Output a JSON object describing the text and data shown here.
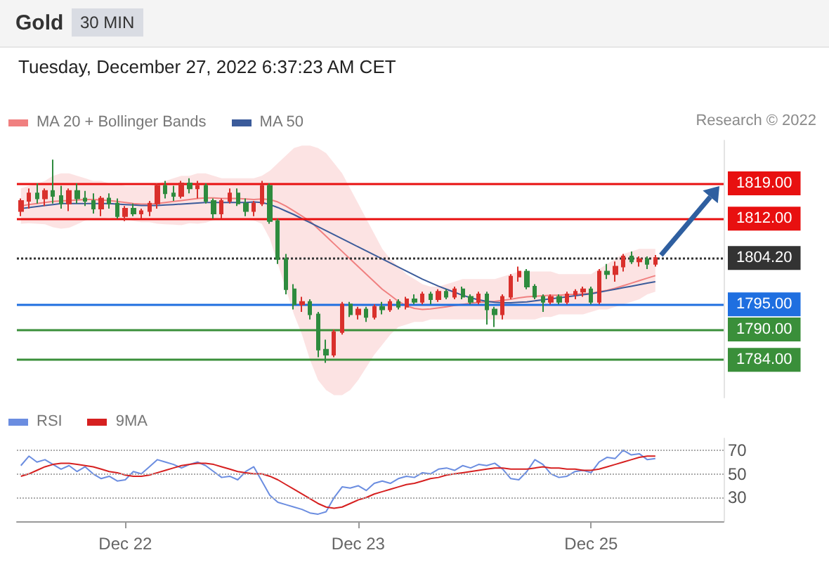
{
  "chart_data": [
    {
      "type": "candlestick",
      "title": "Gold",
      "subtitle": "30 MIN",
      "annotations": [
        "Tuesday, December 27, 2022 6:37:23 AM CET",
        "Research © 2022"
      ],
      "categories": [
        null,
        null,
        null,
        null,
        null,
        null,
        null,
        null,
        null,
        null,
        null,
        null,
        null,
        null,
        null,
        null,
        null,
        null,
        null,
        null,
        null,
        null,
        null,
        null,
        null,
        null,
        null,
        null,
        null,
        null,
        null,
        null,
        null,
        null,
        null,
        null,
        null,
        null,
        null,
        null,
        null,
        null,
        null,
        null,
        null,
        null,
        null,
        null,
        null,
        null,
        null,
        null,
        null,
        null,
        null,
        null,
        null,
        null,
        null,
        null,
        null,
        null,
        null,
        null,
        null,
        null,
        null,
        null,
        null,
        null,
        null,
        null,
        null,
        null,
        null,
        null,
        null,
        null,
        null,
        null
      ],
      "ohlc": [
        [
          1813.5,
          1816,
          1812.5,
          1815.5
        ],
        [
          1815.5,
          1818,
          1814,
          1817
        ],
        [
          1817,
          1819,
          1815,
          1816
        ],
        [
          1816,
          1818,
          1814.5,
          1817.5
        ],
        [
          1817.5,
          1823.7,
          1815,
          1816.5
        ],
        [
          1816.5,
          1818.5,
          1814,
          1815
        ],
        [
          1815,
          1818,
          1813.5,
          1817.5
        ],
        [
          1817.5,
          1819,
          1815,
          1816
        ],
        [
          1816,
          1817.5,
          1814.5,
          1815.5
        ],
        [
          1815.5,
          1817,
          1813,
          1814
        ],
        [
          1814,
          1816.5,
          1812.5,
          1816
        ],
        [
          1816,
          1817,
          1814,
          1815
        ],
        [
          1815,
          1816,
          1812,
          1812.5
        ],
        [
          1812.5,
          1814.5,
          1811.5,
          1814
        ],
        [
          1814,
          1815,
          1812.5,
          1813
        ],
        [
          1813,
          1814,
          1812,
          1813.5
        ],
        [
          1813.5,
          1815.5,
          1812.5,
          1815
        ],
        [
          1815,
          1819,
          1814,
          1818.5
        ],
        [
          1818.5,
          1819.5,
          1816,
          1817
        ],
        [
          1817,
          1818.5,
          1815.5,
          1816.5
        ],
        [
          1816.5,
          1819.5,
          1816,
          1819
        ],
        [
          1819,
          1820,
          1817,
          1818
        ],
        [
          1818,
          1819.5,
          1816,
          1818.5
        ],
        [
          1818.5,
          1819,
          1815,
          1815.5
        ],
        [
          1815.5,
          1816,
          1812,
          1813
        ],
        [
          1813,
          1816,
          1812,
          1815.5
        ],
        [
          1815.5,
          1818,
          1815,
          1817
        ],
        [
          1817,
          1818,
          1814.5,
          1815
        ],
        [
          1815,
          1816,
          1812.5,
          1813.5
        ],
        [
          1813.5,
          1815.5,
          1812.5,
          1815
        ],
        [
          1815,
          1819.5,
          1814.5,
          1818.5
        ],
        [
          1818.5,
          1819,
          1811,
          1811.5
        ],
        [
          1811.5,
          1812,
          1803,
          1804
        ],
        [
          1804,
          1805,
          1797,
          1798
        ],
        [
          1798,
          1799,
          1794,
          1795
        ],
        [
          1795,
          1796.5,
          1793.5,
          1795.5
        ],
        [
          1795.5,
          1796,
          1792,
          1793
        ],
        [
          1793,
          1793.5,
          1784.5,
          1786
        ],
        [
          1786,
          1788,
          1783.4,
          1785
        ],
        [
          1785,
          1790,
          1784.5,
          1789.5
        ],
        [
          1789.5,
          1795.5,
          1789,
          1795
        ],
        [
          1795,
          1795.5,
          1792.5,
          1793
        ],
        [
          1793,
          1794.5,
          1792,
          1794
        ],
        [
          1794,
          1794.5,
          1791.5,
          1792.5
        ],
        [
          1792.5,
          1795,
          1792,
          1794.5
        ],
        [
          1794.5,
          1795.5,
          1793,
          1794
        ],
        [
          1794,
          1796,
          1793.5,
          1795.5
        ],
        [
          1795.5,
          1796,
          1794,
          1794.5
        ],
        [
          1794.5,
          1796.5,
          1794,
          1796
        ],
        [
          1796,
          1797,
          1795,
          1795.5
        ],
        [
          1795.5,
          1797.5,
          1795,
          1797
        ],
        [
          1797,
          1797.5,
          1795,
          1796
        ],
        [
          1796,
          1798,
          1795.5,
          1797.5
        ],
        [
          1797.5,
          1798,
          1796,
          1796.5
        ],
        [
          1796.5,
          1798.5,
          1796,
          1798
        ],
        [
          1798,
          1798.5,
          1796,
          1796.5
        ],
        [
          1796.5,
          1797,
          1795,
          1795.5
        ],
        [
          1795.5,
          1797.5,
          1795,
          1797
        ],
        [
          1797,
          1797.5,
          1791,
          1794
        ],
        [
          1794,
          1794.5,
          1790.5,
          1793
        ],
        [
          1793,
          1797,
          1792,
          1796.5
        ],
        [
          1796.5,
          1801,
          1796,
          1800.5
        ],
        [
          1800.5,
          1802.5,
          1799.5,
          1801.5
        ],
        [
          1801.5,
          1802,
          1798,
          1798.5
        ],
        [
          1798.5,
          1799,
          1796,
          1796.5
        ],
        [
          1796.5,
          1797,
          1793.5,
          1795.5
        ],
        [
          1795.5,
          1797,
          1795,
          1796.5
        ],
        [
          1796.5,
          1797,
          1795,
          1795.5
        ],
        [
          1795.5,
          1797.5,
          1795,
          1797
        ],
        [
          1797,
          1798,
          1796,
          1797.5
        ],
        [
          1797.5,
          1798.5,
          1796.5,
          1798
        ],
        [
          1798,
          1798.5,
          1795,
          1795.5
        ],
        [
          1795.5,
          1802,
          1795,
          1801.5
        ],
        [
          1801.5,
          1803,
          1800,
          1801
        ],
        [
          1801,
          1803.5,
          1799.5,
          1802.5
        ],
        [
          1802.5,
          1805,
          1801.5,
          1804.5
        ],
        [
          1804.5,
          1805.5,
          1803,
          1803.5
        ],
        [
          1803.5,
          1804.5,
          1802.5,
          1804
        ],
        [
          1804,
          1804.5,
          1802,
          1803
        ],
        [
          1803,
          1804.8,
          1802.5,
          1804.2
        ]
      ],
      "colors": [
        "#d9302c",
        "#d9302c",
        "#2e8b3e",
        "#d9302c",
        "#2e8b3e",
        "#2e8b3e",
        "#d9302c",
        "#2e8b3e",
        "#2e8b3e",
        "#2e8b3e",
        "#d9302c",
        "#2e8b3e",
        "#2e8b3e",
        "#d9302c",
        "#2e8b3e",
        "#d9302c",
        "#d9302c",
        "#d9302c",
        "#2e8b3e",
        "#2e8b3e",
        "#d9302c",
        "#2e8b3e",
        "#d9302c",
        "#2e8b3e",
        "#2e8b3e",
        "#d9302c",
        "#d9302c",
        "#2e8b3e",
        "#2e8b3e",
        "#d9302c",
        "#d9302c",
        "#2e8b3e",
        "#2e8b3e",
        "#2e8b3e",
        "#2e8b3e",
        "#d9302c",
        "#2e8b3e",
        "#2e8b3e",
        "#2e8b3e",
        "#d9302c",
        "#d9302c",
        "#2e8b3e",
        "#d9302c",
        "#2e8b3e",
        "#d9302c",
        "#2e8b3e",
        "#d9302c",
        "#2e8b3e",
        "#d9302c",
        "#2e8b3e",
        "#d9302c",
        "#2e8b3e",
        "#d9302c",
        "#2e8b3e",
        "#d9302c",
        "#2e8b3e",
        "#2e8b3e",
        "#d9302c",
        "#2e8b3e",
        "#2e8b3e",
        "#d9302c",
        "#d9302c",
        "#d9302c",
        "#2e8b3e",
        "#2e8b3e",
        "#2e8b3e",
        "#d9302c",
        "#2e8b3e",
        "#d9302c",
        "#d9302c",
        "#d9302c",
        "#2e8b3e",
        "#d9302c",
        "#2e8b3e",
        "#d9302c",
        "#d9302c",
        "#2e8b3e",
        "#d9302c",
        "#2e8b3e",
        "#d9302c"
      ],
      "ylim": [
        1776.5,
        1827.5
      ],
      "yticks": [
        {
          "value": 1784,
          "label": "1784.00"
        },
        {
          "value": 1790,
          "label": "1790.00"
        },
        {
          "value": 1795,
          "label": "1795.00"
        },
        {
          "value": 1804.2,
          "label": "1804.20"
        },
        {
          "value": 1812,
          "label": "1812.00"
        },
        {
          "value": 1819,
          "label": "1819.00"
        }
      ],
      "tick_labels": "y",
      "legend": "top left",
      "marker": "none",
      "series": [
        {
          "type": "line",
          "name": "MA 20 + Bollinger Bands",
          "color": "#f08080",
          "values": [
            1814.5,
            1814.8,
            1815,
            1815.2,
            1815.4,
            1815.5,
            1815.6,
            1815.7,
            1815.8,
            1815.8,
            1815.7,
            1815.6,
            1815.4,
            1815.2,
            1815,
            1814.9,
            1814.9,
            1815,
            1815.2,
            1815.4,
            1815.6,
            1815.8,
            1816,
            1816.1,
            1816.1,
            1816,
            1816,
            1816,
            1815.9,
            1815.8,
            1815.9,
            1815.8,
            1815.3,
            1814.5,
            1813.5,
            1812.5,
            1811.5,
            1810,
            1808.5,
            1807,
            1805.5,
            1804,
            1802.5,
            1801,
            1799.5,
            1798,
            1796.8,
            1795.6,
            1794.7,
            1794.2,
            1794,
            1794.1,
            1794.3,
            1794.5,
            1794.8,
            1795,
            1795.2,
            1795.4,
            1795.5,
            1795.6,
            1795.8,
            1796,
            1796.3,
            1796.5,
            1796.6,
            1796.7,
            1796.8,
            1796.8,
            1796.9,
            1797,
            1797.1,
            1797.2,
            1797.5,
            1797.8,
            1798.2,
            1798.7,
            1799.2,
            1799.7,
            1800.2,
            1800.7
          ],
          "upper": [
            1818,
            1818.5,
            1819,
            1819.5,
            1820.5,
            1821,
            1821,
            1820.5,
            1820,
            1819.5,
            1819.5,
            1819,
            1819,
            1818.5,
            1818.5,
            1818.5,
            1818.5,
            1819,
            1819.5,
            1820,
            1820.5,
            1820.5,
            1821,
            1821,
            1820.5,
            1820,
            1820,
            1820,
            1820,
            1820,
            1820.5,
            1821.5,
            1823,
            1824.5,
            1826,
            1826.5,
            1826.5,
            1826,
            1825,
            1823,
            1821,
            1818,
            1815,
            1812,
            1809,
            1806,
            1804,
            1802.5,
            1801,
            1800,
            1799,
            1798.5,
            1798.5,
            1799,
            1799.5,
            1800,
            1800,
            1800,
            1800,
            1800,
            1800.5,
            1801,
            1801.5,
            1801.5,
            1801.5,
            1801.5,
            1801.5,
            1801,
            1801,
            1801,
            1801,
            1801,
            1802,
            1803,
            1804,
            1805,
            1805.5,
            1806,
            1806,
            1806
          ],
          "lower": [
            1811,
            1811.1,
            1811,
            1810.9,
            1810.3,
            1810,
            1810.2,
            1810.9,
            1811.6,
            1812.1,
            1811.9,
            1812.2,
            1811.8,
            1811.9,
            1811.5,
            1811.3,
            1811.3,
            1811,
            1810.9,
            1810.8,
            1810.7,
            1811.1,
            1811,
            1811.2,
            1811.7,
            1812,
            1812,
            1812,
            1811.8,
            1811.6,
            1811,
            1808,
            1803,
            1798,
            1793,
            1789,
            1784,
            1780,
            1778,
            1777,
            1777,
            1778,
            1780,
            1782.5,
            1785,
            1787,
            1789,
            1790.5,
            1791,
            1791.5,
            1791.5,
            1792,
            1792,
            1792,
            1792,
            1792,
            1792,
            1792,
            1792,
            1792,
            1792,
            1792,
            1792,
            1792,
            1792,
            1792.5,
            1792.5,
            1793,
            1793,
            1793,
            1793,
            1793.5,
            1794,
            1794,
            1794.5,
            1795,
            1795.5,
            1796,
            1797,
            1797.5
          ]
        },
        {
          "type": "line",
          "name": "MA 50",
          "color": "#3b5b9a",
          "values": [
            1814,
            1814.2,
            1814.4,
            1814.6,
            1814.8,
            1815,
            1815,
            1815,
            1815,
            1815,
            1815,
            1815,
            1814.9,
            1814.8,
            1814.7,
            1814.6,
            1814.6,
            1814.6,
            1814.7,
            1814.8,
            1814.9,
            1815,
            1815.1,
            1815.2,
            1815.2,
            1815.2,
            1815.2,
            1815.2,
            1815.2,
            1815.3,
            1815.2,
            1814.8,
            1814.2,
            1813.5,
            1812.8,
            1812,
            1811.2,
            1810.4,
            1809.6,
            1808.8,
            1808,
            1807.2,
            1806.4,
            1805.6,
            1804.8,
            1804,
            1803.2,
            1802.4,
            1801.6,
            1800.8,
            1800,
            1799.3,
            1798.6,
            1798,
            1797.4,
            1796.8,
            1796.3,
            1795.9,
            1795.6,
            1795.4,
            1795.3,
            1795.3,
            1795.4,
            1795.5,
            1795.7,
            1795.9,
            1796.1,
            1796.3,
            1796.5,
            1796.7,
            1796.9,
            1797.1,
            1797.4,
            1797.7,
            1798,
            1798.3,
            1798.6,
            1798.9,
            1799.2,
            1799.5
          ]
        }
      ],
      "ref_lines": [
        {
          "axis": "y",
          "value": 1819,
          "color": "#e81010"
        },
        {
          "axis": "y",
          "value": 1812,
          "color": "#e81010"
        },
        {
          "axis": "y",
          "value": 1804.2,
          "color": "#333333",
          "line_style": "dotted"
        },
        {
          "axis": "y",
          "value": 1795,
          "color": "#1f6fe0"
        },
        {
          "axis": "y",
          "value": 1790,
          "color": "#3a8f3a"
        },
        {
          "axis": "y",
          "value": 1784,
          "color": "#3a8f3a"
        }
      ]
    },
    {
      "type": "line",
      "categories": [
        null,
        null,
        null,
        null,
        null,
        null,
        null,
        null,
        null,
        null,
        null,
        null,
        null,
        "Dec 22",
        null,
        null,
        null,
        null,
        null,
        null,
        null,
        null,
        null,
        null,
        null,
        null,
        null,
        null,
        null,
        null,
        null,
        null,
        null,
        null,
        null,
        null,
        null,
        null,
        null,
        null,
        null,
        null,
        "Dec 23",
        null,
        null,
        null,
        null,
        null,
        null,
        null,
        null,
        null,
        null,
        null,
        null,
        null,
        null,
        null,
        null,
        null,
        null,
        null,
        null,
        null,
        null,
        null,
        null,
        null,
        null,
        null,
        null,
        "Dec 25",
        null,
        null,
        null,
        null,
        null,
        null,
        null,
        null
      ],
      "ylim": [
        10,
        80
      ],
      "yticks": [
        30,
        50,
        70
      ],
      "grid": "y",
      "legend": "top left",
      "marker": "none",
      "series": [
        {
          "name": "RSI",
          "color": "#6b8de0",
          "values": [
            57,
            65,
            60,
            62,
            58,
            54,
            57,
            52,
            56,
            50,
            46,
            48,
            44,
            45,
            52,
            50,
            56,
            62,
            60,
            58,
            55,
            58,
            60,
            57,
            52,
            47,
            48,
            45,
            52,
            56,
            44,
            32,
            26,
            24,
            22,
            20,
            17,
            16,
            18,
            30,
            39,
            38,
            40,
            36,
            42,
            44,
            42,
            46,
            48,
            47,
            51,
            50,
            54,
            55,
            53,
            57,
            55,
            58,
            57,
            59,
            54,
            46,
            45,
            52,
            62,
            58,
            50,
            47,
            48,
            52,
            53,
            51,
            60,
            64,
            63,
            70,
            66,
            67,
            62,
            63
          ]
        },
        {
          "name": "9MA",
          "color": "#d62020",
          "values": [
            48,
            50,
            53,
            56,
            58,
            59,
            59,
            58,
            57,
            56,
            54,
            52,
            51,
            49,
            48,
            48,
            49,
            51,
            53,
            55,
            57,
            58,
            59,
            59,
            58,
            56,
            54,
            52,
            51,
            50,
            50,
            48,
            45,
            41,
            37,
            33,
            29,
            25,
            22,
            21,
            22,
            25,
            28,
            30,
            33,
            35,
            37,
            39,
            41,
            42,
            44,
            46,
            47,
            49,
            50,
            51,
            52,
            53,
            54,
            55,
            55,
            54,
            54,
            54,
            55,
            56,
            55,
            55,
            54,
            54,
            53,
            53,
            54,
            56,
            58,
            60,
            62,
            64,
            65,
            65
          ]
        }
      ]
    }
  ]
}
